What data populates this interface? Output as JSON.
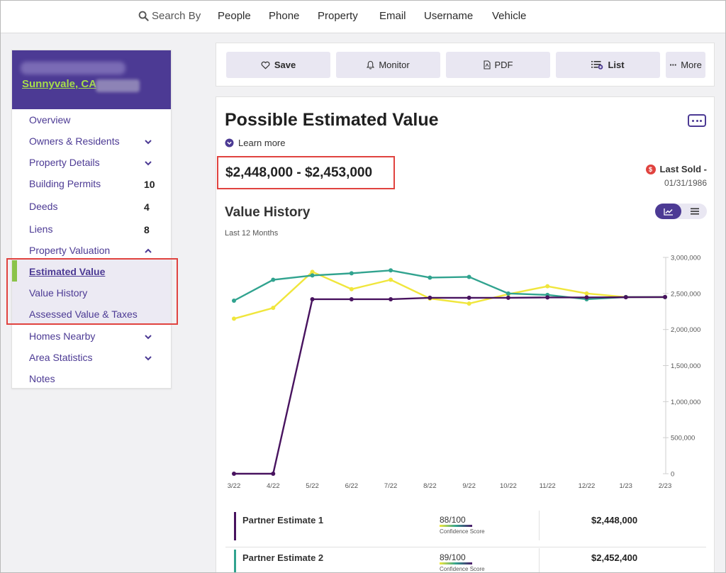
{
  "nav": {
    "search_by": "Search By",
    "items": [
      "People",
      "Phone",
      "Property",
      "Email",
      "Username",
      "Vehicle"
    ]
  },
  "sidebar": {
    "city": "Sunnyvale, CA",
    "items": [
      {
        "label": "Overview"
      },
      {
        "label": "Owners & Residents",
        "chevron": "down"
      },
      {
        "label": "Property Details",
        "chevron": "down"
      },
      {
        "label": "Building Permits",
        "count": "10"
      },
      {
        "label": "Deeds",
        "count": "4"
      },
      {
        "label": "Liens",
        "count": "8"
      },
      {
        "label": "Property Valuation",
        "chevron": "up"
      },
      {
        "label": "Estimated Value",
        "active": true
      },
      {
        "label": "Value History"
      },
      {
        "label": "Assessed Value & Taxes"
      },
      {
        "label": "Homes Nearby",
        "chevron": "down"
      },
      {
        "label": "Area Statistics",
        "chevron": "down"
      },
      {
        "label": "Notes"
      }
    ]
  },
  "toolbar": {
    "save": "Save",
    "monitor": "Monitor",
    "pdf": "PDF",
    "list": "List",
    "more": "More"
  },
  "main": {
    "title": "Possible Estimated Value",
    "learn_more": "Learn more",
    "range": "$2,448,000 - $2,453,000",
    "last_sold_label": "Last Sold -",
    "last_sold_date": "01/31/1986",
    "history_title": "Value History",
    "history_sub": "Last 12 Months"
  },
  "chart_data": {
    "type": "line",
    "categories": [
      "3/22",
      "4/22",
      "5/22",
      "6/22",
      "7/22",
      "8/22",
      "9/22",
      "10/22",
      "11/22",
      "12/22",
      "1/23",
      "2/23"
    ],
    "ylim": [
      0,
      3000000
    ],
    "yticks": [
      0,
      500000,
      1000000,
      1500000,
      2000000,
      2500000,
      3000000
    ],
    "ytick_labels": [
      "0",
      "500,000",
      "1,000,000",
      "1,500,000",
      "2,000,000",
      "2,500,000",
      "3,000,000"
    ],
    "series": [
      {
        "color": "#f0e63c",
        "values": [
          2150000,
          2300000,
          2800000,
          2560000,
          2690000,
          2430000,
          2360000,
          2490000,
          2600000,
          2500000,
          2450000,
          2450000
        ]
      },
      {
        "color": "#31a38f",
        "values": [
          2400000,
          2690000,
          2750000,
          2780000,
          2820000,
          2720000,
          2730000,
          2500000,
          2480000,
          2420000,
          2450000,
          2450000
        ]
      },
      {
        "color": "#48135f",
        "values": [
          0,
          0,
          2420000,
          2420000,
          2420000,
          2440000,
          2440000,
          2440000,
          2445000,
          2445000,
          2448000,
          2450000
        ]
      }
    ]
  },
  "partners": [
    {
      "name": "Partner Estimate 1",
      "score": "88",
      "max": "/100",
      "conf": "Confidence Score",
      "value": "$2,448,000",
      "color": "#48135f"
    },
    {
      "name": "Partner Estimate 2",
      "score": "89",
      "max": "/100",
      "conf": "Confidence Score",
      "value": "$2,452,400",
      "color": "#31a38f"
    }
  ]
}
